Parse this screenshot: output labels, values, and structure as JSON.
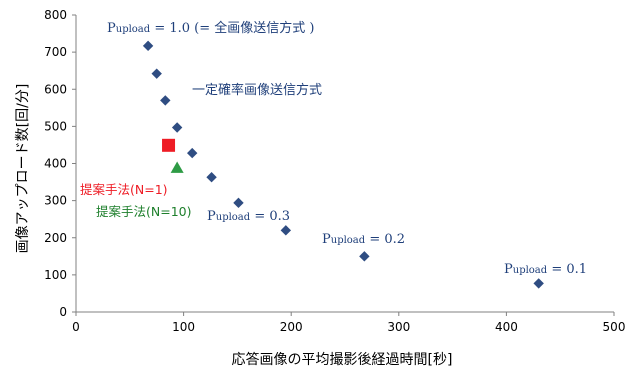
{
  "chart_data": {
    "type": "scatter",
    "xlabel": "応答画像の平均撮影後経過時間[秒]",
    "ylabel": "画像アップロード数[回/分]",
    "xlim": [
      0,
      500
    ],
    "ylim": [
      0,
      800
    ],
    "x_ticks": [
      "0",
      "100",
      "200",
      "300",
      "400",
      "500"
    ],
    "y_ticks": [
      "0",
      "100",
      "200",
      "300",
      "400",
      "500",
      "600",
      "700",
      "800"
    ],
    "colors": {
      "series_diamond": "#2f4d82",
      "proposed_n1": "#ee1c25",
      "proposed_n10": "#2e9b45",
      "axis": "#808080"
    },
    "series": [
      {
        "name": "一定確率画像送信方式",
        "marker": "diamond",
        "points": [
          {
            "x": 67,
            "y": 717
          },
          {
            "x": 75,
            "y": 642
          },
          {
            "x": 83,
            "y": 570
          },
          {
            "x": 94,
            "y": 497
          },
          {
            "x": 108,
            "y": 428
          },
          {
            "x": 126,
            "y": 363
          },
          {
            "x": 151,
            "y": 294
          },
          {
            "x": 195,
            "y": 220
          },
          {
            "x": 268,
            "y": 150
          },
          {
            "x": 430,
            "y": 77
          }
        ]
      },
      {
        "name": "提案手法(N=1)",
        "marker": "square",
        "points": [
          {
            "x": 86,
            "y": 449
          }
        ]
      },
      {
        "name": "提案手法(N=10)",
        "marker": "triangle",
        "points": [
          {
            "x": 94,
            "y": 388
          }
        ]
      }
    ],
    "annotations": {
      "p_label_main": "P",
      "p_label_sub": "upload",
      "p10_rest": " = 1.0 (= 全画像送信方式 )",
      "p03_rest": " = 0.3",
      "p02_rest": " = 0.2",
      "p01_rest": " = 0.1",
      "constant_prob": "一定確率画像送信方式",
      "proposed_n1": "提案手法(N=1)",
      "proposed_n10": "提案手法(N=10)"
    }
  }
}
